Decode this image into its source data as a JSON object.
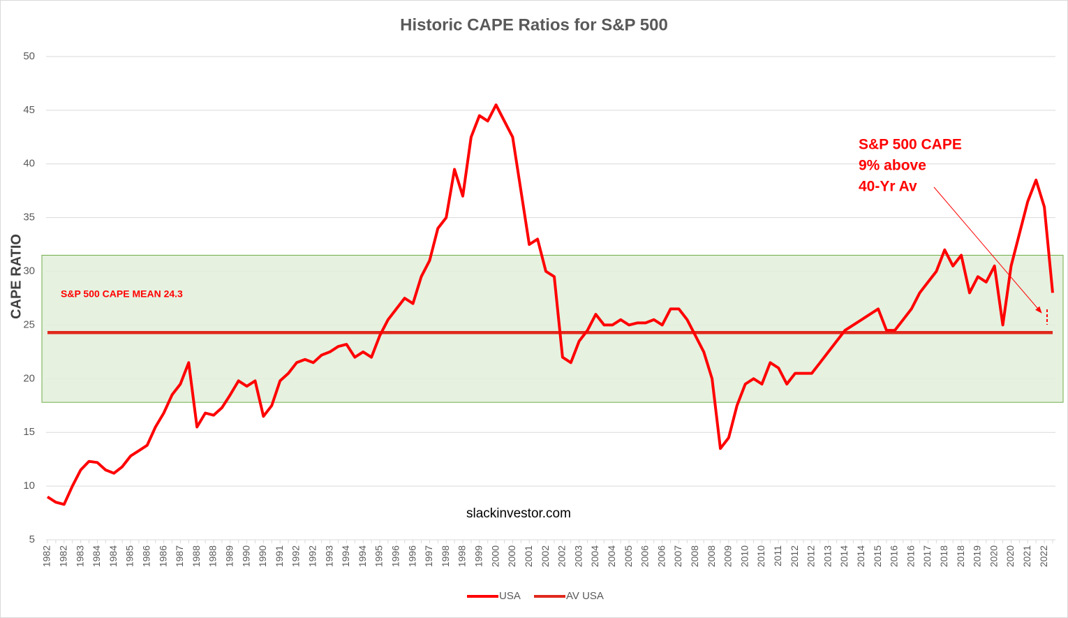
{
  "chart_data": {
    "type": "line",
    "title": "Historic CAPE Ratios for S&P 500",
    "y_label": "CAPE RATIO",
    "ylim": [
      5,
      50
    ],
    "yticks": [
      5,
      10,
      15,
      20,
      25,
      30,
      35,
      40,
      45,
      50
    ],
    "grid": true,
    "legend": "bottom",
    "band": [
      17.8,
      31.5
    ],
    "band_color": "#e2efda",
    "annotations": [
      "S&P 500 CAPE MEAN 24.3",
      "S&P 500 CAPE",
      "9% above",
      "40-Yr Av",
      "slackinvestor.com"
    ],
    "categories": [
      "1982",
      null,
      "1982",
      null,
      "1983",
      null,
      "1984",
      null,
      "1984",
      null,
      "1985",
      null,
      "1986",
      null,
      "1986",
      null,
      "1987",
      null,
      "1988",
      null,
      "1988",
      null,
      "1989",
      null,
      "1990",
      null,
      "1990",
      null,
      "1991",
      null,
      "1992",
      null,
      "1992",
      null,
      "1993",
      null,
      "1994",
      null,
      "1994",
      null,
      "1995",
      null,
      "1996",
      null,
      "1996",
      null,
      "1997",
      null,
      "1998",
      null,
      "1998",
      null,
      "1999",
      null,
      "2000",
      null,
      "2000",
      null,
      "2001",
      null,
      "2002",
      null,
      "2002",
      null,
      "2003",
      null,
      "2004",
      null,
      "2004",
      null,
      "2005",
      null,
      "2006",
      null,
      "2006",
      null,
      "2007",
      null,
      "2008",
      null,
      "2008",
      null,
      "2009",
      null,
      "2010",
      null,
      "2010",
      null,
      "2011",
      null,
      "2012",
      null,
      "2012",
      null,
      "2013",
      null,
      "2014",
      null,
      "2014",
      null,
      "2015",
      null,
      "2016",
      null,
      "2016",
      null,
      "2017",
      null,
      "2018",
      null,
      "2018",
      null,
      "2019",
      null,
      "2020",
      null,
      "2020",
      null,
      "2021",
      null,
      "2022",
      null
    ],
    "series": [
      {
        "name": "USA",
        "color": "#ff0000",
        "values": [
          9.0,
          8.5,
          8.3,
          10.0,
          11.5,
          12.3,
          12.2,
          11.5,
          11.2,
          11.8,
          12.8,
          13.3,
          13.8,
          15.5,
          16.8,
          18.5,
          19.5,
          21.5,
          15.5,
          16.8,
          16.6,
          17.3,
          18.5,
          19.8,
          19.3,
          19.8,
          16.5,
          17.5,
          19.8,
          20.5,
          21.5,
          21.8,
          21.5,
          22.2,
          22.5,
          23.0,
          23.2,
          22.0,
          22.5,
          22.0,
          24.0,
          25.5,
          26.5,
          27.5,
          27.0,
          29.5,
          31.0,
          34.0,
          35.0,
          39.5,
          37.0,
          42.5,
          44.5,
          44.0,
          45.5,
          44.0,
          42.5,
          37.5,
          32.5,
          33.0,
          30.0,
          29.5,
          22.0,
          21.5,
          23.5,
          24.5,
          26.0,
          25.0,
          25.0,
          25.5,
          25.0,
          25.2,
          25.2,
          25.5,
          25.0,
          26.5,
          26.5,
          25.5,
          24.0,
          22.5,
          20.0,
          13.5,
          14.5,
          17.5,
          19.5,
          20.0,
          19.5,
          21.5,
          21.0,
          19.5,
          20.5,
          20.5,
          20.5,
          21.5,
          22.5,
          23.5,
          24.5,
          25.0,
          25.5,
          26.0,
          26.5,
          24.5,
          24.5,
          25.5,
          26.5,
          28.0,
          29.0,
          30.0,
          32.0,
          30.5,
          31.5,
          28.0,
          29.5,
          29.0,
          30.5,
          25.0,
          30.5,
          33.5,
          36.5,
          38.5,
          36.0,
          28.0
        ]
      },
      {
        "name": "AV USA",
        "color": "#e0281c",
        "values": [
          24.3,
          24.3,
          24.3,
          24.3,
          24.3,
          24.3,
          24.3,
          24.3,
          24.3,
          24.3,
          24.3,
          24.3,
          24.3,
          24.3,
          24.3,
          24.3,
          24.3,
          24.3,
          24.3,
          24.3,
          24.3,
          24.3,
          24.3,
          24.3,
          24.3,
          24.3,
          24.3,
          24.3,
          24.3,
          24.3,
          24.3,
          24.3,
          24.3,
          24.3,
          24.3,
          24.3,
          24.3,
          24.3,
          24.3,
          24.3,
          24.3,
          24.3,
          24.3,
          24.3,
          24.3,
          24.3,
          24.3,
          24.3,
          24.3,
          24.3,
          24.3,
          24.3,
          24.3,
          24.3,
          24.3,
          24.3,
          24.3,
          24.3,
          24.3,
          24.3,
          24.3,
          24.3,
          24.3,
          24.3,
          24.3,
          24.3,
          24.3,
          24.3,
          24.3,
          24.3,
          24.3,
          24.3,
          24.3,
          24.3,
          24.3,
          24.3,
          24.3,
          24.3,
          24.3,
          24.3,
          24.3,
          24.3,
          24.3,
          24.3,
          24.3,
          24.3,
          24.3,
          24.3,
          24.3,
          24.3,
          24.3,
          24.3,
          24.3,
          24.3,
          24.3,
          24.3,
          24.3,
          24.3,
          24.3,
          24.3,
          24.3,
          24.3,
          24.3,
          24.3,
          24.3,
          24.3,
          24.3,
          24.3,
          24.3,
          24.3,
          24.3,
          24.3,
          24.3,
          24.3,
          24.3,
          24.3,
          24.3,
          24.3,
          24.3,
          24.3,
          24.3,
          24.3
        ]
      }
    ]
  }
}
